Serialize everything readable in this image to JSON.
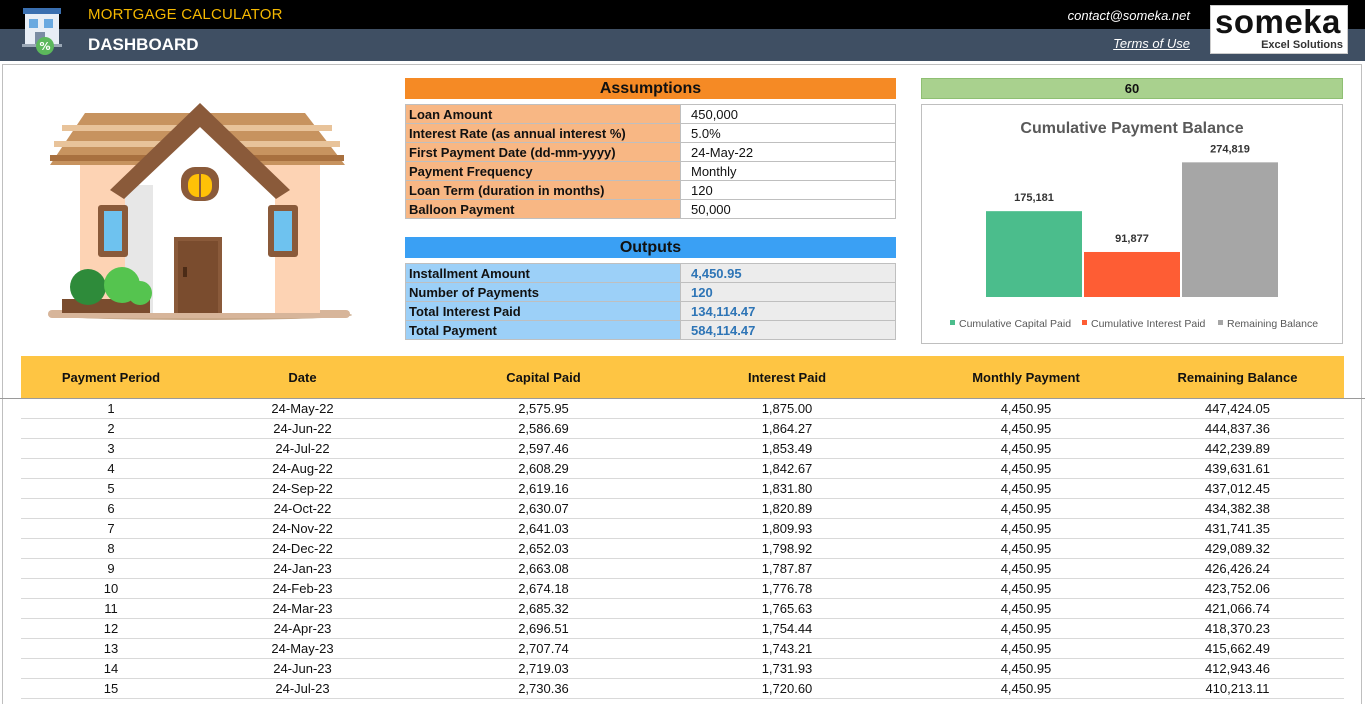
{
  "header": {
    "app_title": "MORTGAGE CALCULATOR",
    "page_title": "DASHBOARD",
    "contact": "contact@someka.net",
    "terms": "Terms of Use",
    "logo_brand": "someka",
    "logo_sub": "Excel Solutions",
    "app_icon": "house-percent-icon"
  },
  "assumptions": {
    "title": "Assumptions",
    "rows": [
      {
        "label": "Loan Amount",
        "value": "450,000"
      },
      {
        "label": "Interest Rate (as annual interest %)",
        "value": "5.0%"
      },
      {
        "label": "First Payment Date (dd-mm-yyyy)",
        "value": "24-May-22"
      },
      {
        "label": "Payment Frequency",
        "value": "Monthly"
      },
      {
        "label": "Loan Term (duration in months)",
        "value": "120"
      },
      {
        "label": "Balloon Payment",
        "value": "50,000"
      }
    ]
  },
  "outputs": {
    "title": "Outputs",
    "rows": [
      {
        "label": "Installment Amount",
        "value": "4,450.95"
      },
      {
        "label": "Number of Payments",
        "value": "120"
      },
      {
        "label": "Total Interest Paid",
        "value": "134,114.47"
      },
      {
        "label": "Total Payment",
        "value": "584,114.47"
      }
    ]
  },
  "period_selector": "60",
  "chart_data": {
    "type": "bar",
    "title": "Cumulative Payment Balance",
    "categories": [
      "Cumulative Capital Paid",
      "Cumulative Interest Paid",
      "Remaining Balance"
    ],
    "values": [
      175181,
      91877,
      274819
    ],
    "labels": [
      "175,181",
      "91,877",
      "274,819"
    ],
    "colors": [
      "#4bbd8c",
      "#fe5d34",
      "#a6a6a6"
    ],
    "ylim": [
      0,
      320000
    ],
    "legend": "bottom",
    "grid": false
  },
  "table": {
    "columns": [
      "Payment Period",
      "Date",
      "Capital Paid",
      "Interest Paid",
      "Monthly Payment",
      "Remaining Balance"
    ],
    "rows": [
      [
        "1",
        "24-May-22",
        "2,575.95",
        "1,875.00",
        "4,450.95",
        "447,424.05"
      ],
      [
        "2",
        "24-Jun-22",
        "2,586.69",
        "1,864.27",
        "4,450.95",
        "444,837.36"
      ],
      [
        "3",
        "24-Jul-22",
        "2,597.46",
        "1,853.49",
        "4,450.95",
        "442,239.89"
      ],
      [
        "4",
        "24-Aug-22",
        "2,608.29",
        "1,842.67",
        "4,450.95",
        "439,631.61"
      ],
      [
        "5",
        "24-Sep-22",
        "2,619.16",
        "1,831.80",
        "4,450.95",
        "437,012.45"
      ],
      [
        "6",
        "24-Oct-22",
        "2,630.07",
        "1,820.89",
        "4,450.95",
        "434,382.38"
      ],
      [
        "7",
        "24-Nov-22",
        "2,641.03",
        "1,809.93",
        "4,450.95",
        "431,741.35"
      ],
      [
        "8",
        "24-Dec-22",
        "2,652.03",
        "1,798.92",
        "4,450.95",
        "429,089.32"
      ],
      [
        "9",
        "24-Jan-23",
        "2,663.08",
        "1,787.87",
        "4,450.95",
        "426,426.24"
      ],
      [
        "10",
        "24-Feb-23",
        "2,674.18",
        "1,776.78",
        "4,450.95",
        "423,752.06"
      ],
      [
        "11",
        "24-Mar-23",
        "2,685.32",
        "1,765.63",
        "4,450.95",
        "421,066.74"
      ],
      [
        "12",
        "24-Apr-23",
        "2,696.51",
        "1,754.44",
        "4,450.95",
        "418,370.23"
      ],
      [
        "13",
        "24-May-23",
        "2,707.74",
        "1,743.21",
        "4,450.95",
        "415,662.49"
      ],
      [
        "14",
        "24-Jun-23",
        "2,719.03",
        "1,731.93",
        "4,450.95",
        "412,943.46"
      ],
      [
        "15",
        "24-Jul-23",
        "2,730.36",
        "1,720.60",
        "4,450.95",
        "410,213.11"
      ]
    ]
  }
}
